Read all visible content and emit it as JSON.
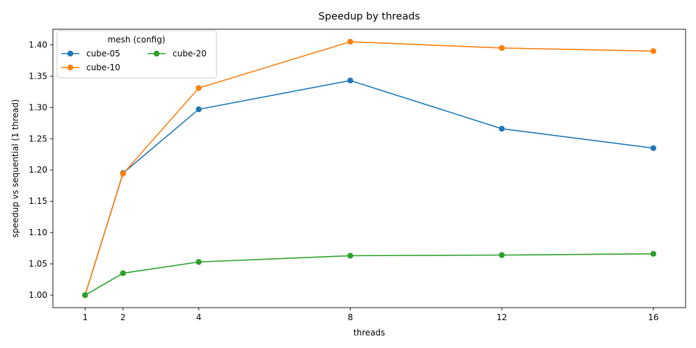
{
  "chart_data": {
    "type": "line",
    "title": "Speedup by threads",
    "xlabel": "threads",
    "ylabel": "speedup vs sequential (1 thread)",
    "x": [
      1,
      2,
      4,
      8,
      12,
      16
    ],
    "xticks": [
      "1",
      "2",
      "4",
      "8",
      "12",
      "16"
    ],
    "xlim": [
      0.15,
      16.85
    ],
    "ylim": [
      0.98,
      1.425
    ],
    "yticks": [
      1.0,
      1.05,
      1.1,
      1.15,
      1.2,
      1.25,
      1.3,
      1.35,
      1.4
    ],
    "ytick_labels": [
      "1.00",
      "1.05",
      "1.10",
      "1.15",
      "1.20",
      "1.25",
      "1.30",
      "1.35",
      "1.40"
    ],
    "grid": false,
    "legend": {
      "title": "mesh (config)",
      "placement": "top-left",
      "columns": 2
    },
    "series": [
      {
        "name": "cube-05",
        "color": "#1f77b4",
        "values": [
          1.0,
          1.195,
          1.297,
          1.343,
          1.266,
          1.235
        ]
      },
      {
        "name": "cube-10",
        "color": "#ff7f0e",
        "values": [
          1.0,
          1.194,
          1.331,
          1.405,
          1.395,
          1.39
        ]
      },
      {
        "name": "cube-20",
        "color": "#2ca02c",
        "values": [
          1.0,
          1.035,
          1.053,
          1.063,
          1.064,
          1.066
        ]
      }
    ]
  }
}
